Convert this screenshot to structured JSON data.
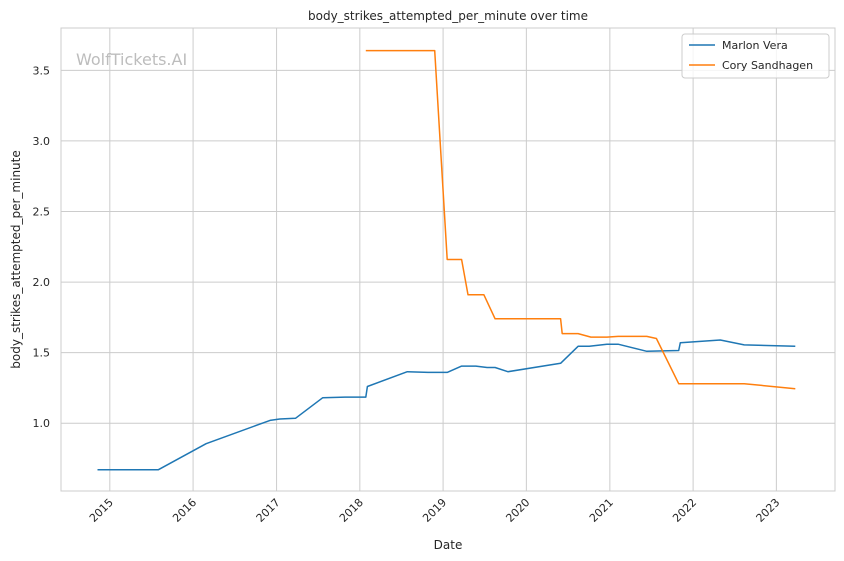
{
  "watermark": "WolfTickets.AI",
  "chart_data": {
    "type": "line",
    "title": "body_strikes_attempted_per_minute over time",
    "xlabel": "Date",
    "ylabel": "body_strikes_attempted_per_minute",
    "xlim": [
      "2014-06-01",
      "2023-09-15"
    ],
    "ylim": [
      0.52,
      3.8
    ],
    "xticks": [
      "2015",
      "2016",
      "2017",
      "2018",
      "2019",
      "2020",
      "2021",
      "2022",
      "2023"
    ],
    "yticks": [
      "1.0",
      "1.5",
      "2.0",
      "2.5",
      "3.0",
      "3.5"
    ],
    "grid": true,
    "legend_position": "top-right",
    "series": [
      {
        "name": "Marlon Vera",
        "color": "#1f77b4",
        "points": [
          [
            "2014-11-08",
            0.67
          ],
          [
            "2015-08-01",
            0.67
          ],
          [
            "2016-02-27",
            0.855
          ],
          [
            "2016-12-03",
            1.02
          ],
          [
            "2017-01-15",
            1.03
          ],
          [
            "2017-03-25",
            1.035
          ],
          [
            "2017-07-22",
            1.18
          ],
          [
            "2017-10-28",
            1.185
          ],
          [
            "2018-01-27",
            1.185
          ],
          [
            "2018-02-03",
            1.26
          ],
          [
            "2018-07-28",
            1.365
          ],
          [
            "2018-10-27",
            1.36
          ],
          [
            "2019-01-19",
            1.36
          ],
          [
            "2019-03-23",
            1.405
          ],
          [
            "2019-05-25",
            1.405
          ],
          [
            "2019-07-13",
            1.395
          ],
          [
            "2019-08-17",
            1.395
          ],
          [
            "2019-10-12",
            1.365
          ],
          [
            "2020-05-30",
            1.425
          ],
          [
            "2020-08-15",
            1.545
          ],
          [
            "2020-10-03",
            1.545
          ],
          [
            "2020-12-19",
            1.56
          ],
          [
            "2021-02-06",
            1.56
          ],
          [
            "2021-06-12",
            1.51
          ],
          [
            "2021-10-30",
            1.515
          ],
          [
            "2021-11-06",
            1.57
          ],
          [
            "2022-04-30",
            1.59
          ],
          [
            "2022-08-13",
            1.555
          ],
          [
            "2023-03-25",
            1.545
          ]
        ]
      },
      {
        "name": "Cory Sandhagen",
        "color": "#ff7f0e",
        "points": [
          [
            "2018-01-27",
            3.64
          ],
          [
            "2018-11-25",
            3.64
          ],
          [
            "2019-01-19",
            2.16
          ],
          [
            "2019-03-23",
            2.16
          ],
          [
            "2019-04-20",
            1.91
          ],
          [
            "2019-06-29",
            1.91
          ],
          [
            "2019-08-17",
            1.74
          ],
          [
            "2020-05-30",
            1.74
          ],
          [
            "2020-06-06",
            1.635
          ],
          [
            "2020-08-15",
            1.635
          ],
          [
            "2020-10-10",
            1.61
          ],
          [
            "2020-12-19",
            1.61
          ],
          [
            "2021-02-06",
            1.615
          ],
          [
            "2021-06-12",
            1.615
          ],
          [
            "2021-07-24",
            1.6
          ],
          [
            "2021-10-30",
            1.28
          ],
          [
            "2022-08-13",
            1.28
          ],
          [
            "2023-03-25",
            1.245
          ]
        ]
      }
    ]
  }
}
